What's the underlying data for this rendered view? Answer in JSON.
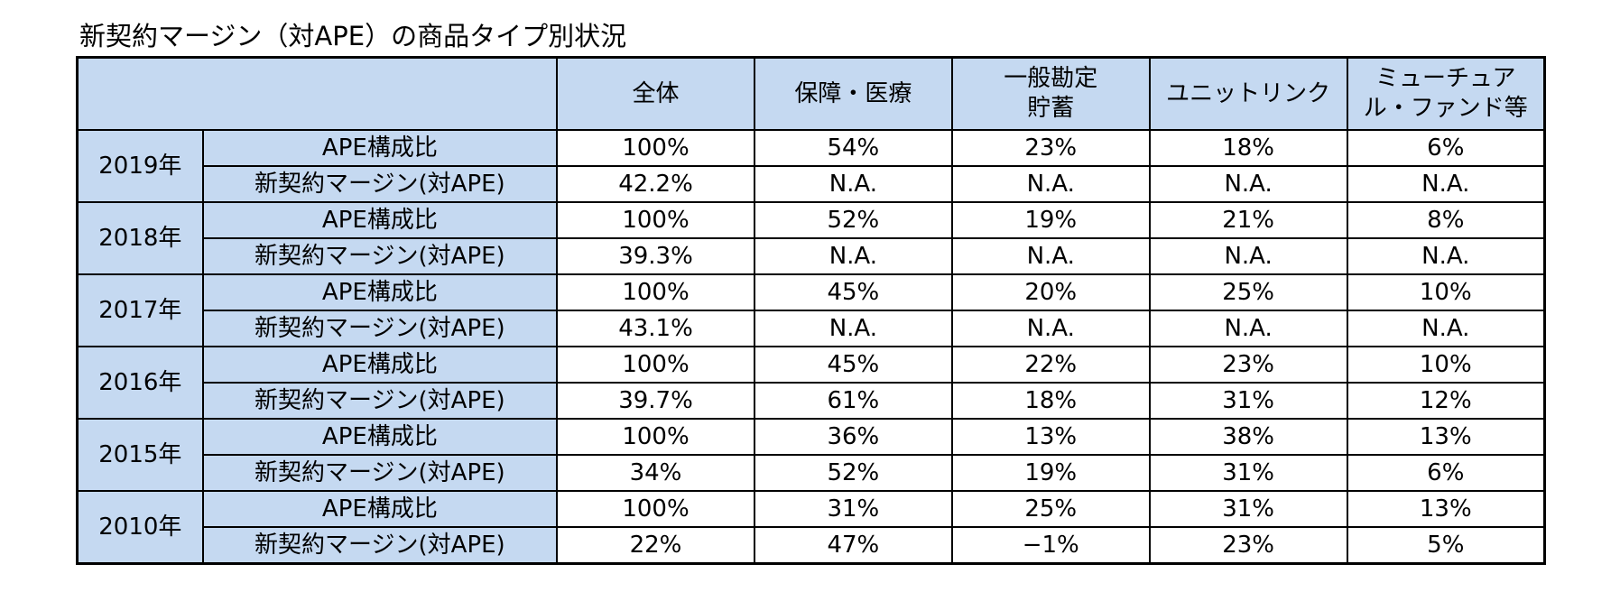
{
  "caption": "新契約マージン（対APE）の商品タイプ別状況",
  "table": {
    "corner": "",
    "columns": [
      {
        "lines": [
          "全体"
        ]
      },
      {
        "lines": [
          "保障・医療"
        ]
      },
      {
        "lines": [
          "一般勘定",
          "貯蓄"
        ]
      },
      {
        "lines": [
          "ユニットリンク"
        ]
      },
      {
        "lines": [
          "ミューチュア",
          "ル・ファンド等"
        ]
      }
    ],
    "groups": [
      {
        "year": "2019年",
        "rows": [
          {
            "metric": "APE構成比",
            "values": [
              "100%",
              "54%",
              "23%",
              "18%",
              "6%"
            ]
          },
          {
            "metric": "新契約マージン(対APE)",
            "values": [
              "42.2%",
              "N.A.",
              "N.A.",
              "N.A.",
              "N.A."
            ]
          }
        ]
      },
      {
        "year": "2018年",
        "rows": [
          {
            "metric": "APE構成比",
            "values": [
              "100%",
              "52%",
              "19%",
              "21%",
              "8%"
            ]
          },
          {
            "metric": "新契約マージン(対APE)",
            "values": [
              "39.3%",
              "N.A.",
              "N.A.",
              "N.A.",
              "N.A."
            ]
          }
        ]
      },
      {
        "year": "2017年",
        "rows": [
          {
            "metric": "APE構成比",
            "values": [
              "100%",
              "45%",
              "20%",
              "25%",
              "10%"
            ]
          },
          {
            "metric": "新契約マージン(対APE)",
            "values": [
              "43.1%",
              "N.A.",
              "N.A.",
              "N.A.",
              "N.A."
            ]
          }
        ]
      },
      {
        "year": "2016年",
        "rows": [
          {
            "metric": "APE構成比",
            "values": [
              "100%",
              "45%",
              "22%",
              "23%",
              "10%"
            ]
          },
          {
            "metric": "新契約マージン(対APE)",
            "values": [
              "39.7%",
              "61%",
              "18%",
              "31%",
              "12%"
            ]
          }
        ]
      },
      {
        "year": "2015年",
        "rows": [
          {
            "metric": "APE構成比",
            "values": [
              "100%",
              "36%",
              "13%",
              "38%",
              "13%"
            ]
          },
          {
            "metric": "新契約マージン(対APE)",
            "values": [
              "34%",
              "52%",
              "19%",
              "31%",
              "6%"
            ]
          }
        ]
      },
      {
        "year": "2010年",
        "rows": [
          {
            "metric": "APE構成比",
            "values": [
              "100%",
              "31%",
              "25%",
              "31%",
              "13%"
            ]
          },
          {
            "metric": "新契約マージン(対APE)",
            "values": [
              "22%",
              "47%",
              "−1%",
              "23%",
              "5%"
            ]
          }
        ]
      }
    ]
  },
  "colors": {
    "header_fill": "#c5d9f1",
    "body_fill": "#ffffff",
    "border": "#000000"
  }
}
